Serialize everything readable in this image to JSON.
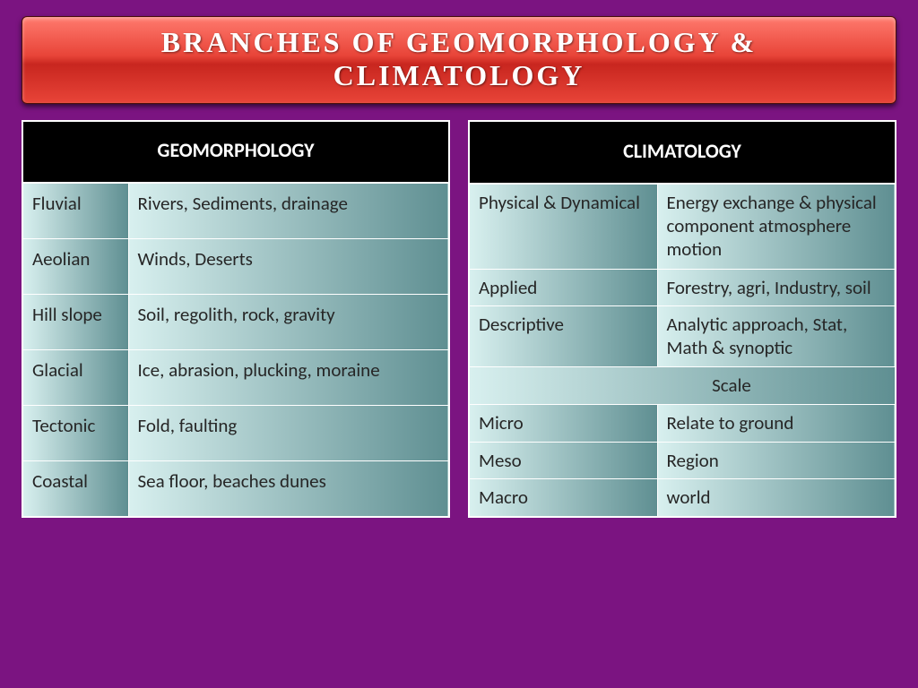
{
  "title": "Branches of Geomorphology & Climatology",
  "colors": {
    "slide_bg": "#7b1481",
    "banner_top": "#ff7a6e",
    "banner_mid": "#e84438",
    "banner_dark": "#c8261f",
    "table_border": "#ffffff",
    "table_header_bg": "#000000",
    "table_header_text": "#ffffff",
    "cell_grad_light": "#d8f0ef",
    "cell_grad_dark": "#5f8f92",
    "cell_text": "#262626"
  },
  "typography": {
    "title_fontsize": 32,
    "header_fontsize": 22,
    "cell_fontsize": 21
  },
  "tables": {
    "left": {
      "header": "GEOMORPHOLOGY",
      "col1_width": 118,
      "rows": [
        {
          "c1": "Fluvial",
          "c2": "Rivers, Sediments, drainage"
        },
        {
          "c1": "Aeolian",
          "c2": "Winds, Deserts"
        },
        {
          "c1": "Hill slope",
          "c2": "Soil, regolith, rock, gravity"
        },
        {
          "c1": "Glacial",
          "c2": "Ice, abrasion, plucking, moraine"
        },
        {
          "c1": "Tectonic",
          "c2": "Fold, faulting"
        },
        {
          "c1": "Coastal",
          "c2": "Sea floor, beaches dunes"
        }
      ]
    },
    "right": {
      "header": "CLIMATOLOGY",
      "col1_width": 210,
      "rows_top": [
        {
          "c1": "Physical & Dynamical",
          "c2": "Energy exchange & physical component atmosphere motion"
        },
        {
          "c1": "Applied",
          "c2": "Forestry, agri, Industry, soil"
        },
        {
          "c1": "Descriptive",
          "c2": "Analytic approach, Stat, Math & synoptic"
        }
      ],
      "subheader": "Scale",
      "rows_bottom": [
        {
          "c1": "Micro",
          "c2": "Relate to ground"
        },
        {
          "c1": "Meso",
          "c2": "Region"
        },
        {
          "c1": "Macro",
          "c2": "world"
        }
      ]
    }
  }
}
